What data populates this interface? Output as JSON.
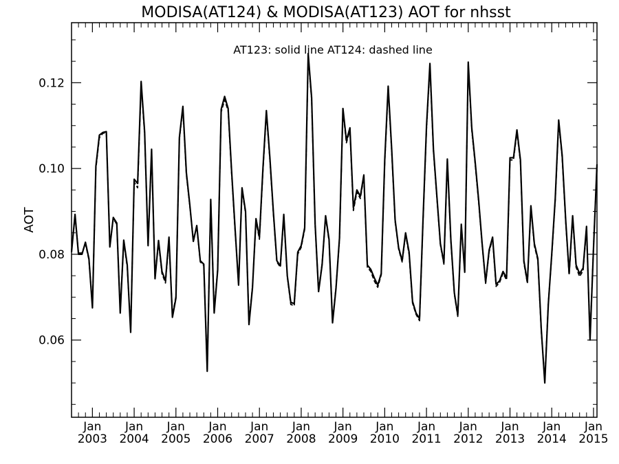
{
  "chart_data": {
    "type": "line",
    "title": "MODISA(AT124) & MODISA(AT123)  AOT for nhsst",
    "ylabel": "AOT",
    "xlabel": "",
    "annotation": "AT123: solid line   AT124: dashed line",
    "ylim": [
      0.042,
      0.134
    ],
    "xlim": [
      "2002-07",
      "2015-02"
    ],
    "y_ticks": [
      {
        "value": 0.06,
        "label": "0.06"
      },
      {
        "value": 0.08,
        "label": "0.08"
      },
      {
        "value": 0.1,
        "label": "0.10"
      },
      {
        "value": 0.12,
        "label": "0.12"
      }
    ],
    "x_ticks": [
      {
        "date": "2003-01",
        "month": "Jan",
        "year": "2003"
      },
      {
        "date": "2004-01",
        "month": "Jan",
        "year": "2004"
      },
      {
        "date": "2005-01",
        "month": "Jan",
        "year": "2005"
      },
      {
        "date": "2006-01",
        "month": "Jan",
        "year": "2006"
      },
      {
        "date": "2007-01",
        "month": "Jan",
        "year": "2007"
      },
      {
        "date": "2008-01",
        "month": "Jan",
        "year": "2008"
      },
      {
        "date": "2009-01",
        "month": "Jan",
        "year": "2009"
      },
      {
        "date": "2010-01",
        "month": "Jan",
        "year": "2010"
      },
      {
        "date": "2011-01",
        "month": "Jan",
        "year": "2011"
      },
      {
        "date": "2012-01",
        "month": "Jan",
        "year": "2012"
      },
      {
        "date": "2013-01",
        "month": "Jan",
        "year": "2013"
      },
      {
        "date": "2014-01",
        "month": "Jan",
        "year": "2014"
      },
      {
        "date": "2015-01",
        "month": "Jan",
        "year": "2015"
      }
    ],
    "x": [
      "2002-07",
      "2002-08",
      "2002-09",
      "2002-10",
      "2002-11",
      "2002-12",
      "2003-01",
      "2003-02",
      "2003-03",
      "2003-04",
      "2003-05",
      "2003-06",
      "2003-07",
      "2003-08",
      "2003-09",
      "2003-10",
      "2003-11",
      "2003-12",
      "2004-01",
      "2004-02",
      "2004-03",
      "2004-04",
      "2004-05",
      "2004-06",
      "2004-07",
      "2004-08",
      "2004-09",
      "2004-10",
      "2004-11",
      "2004-12",
      "2005-01",
      "2005-02",
      "2005-03",
      "2005-04",
      "2005-05",
      "2005-06",
      "2005-07",
      "2005-08",
      "2005-09",
      "2005-10",
      "2005-11",
      "2005-12",
      "2006-01",
      "2006-02",
      "2006-03",
      "2006-04",
      "2006-05",
      "2006-06",
      "2006-07",
      "2006-08",
      "2006-09",
      "2006-10",
      "2006-11",
      "2006-12",
      "2007-01",
      "2007-02",
      "2007-03",
      "2007-04",
      "2007-05",
      "2007-06",
      "2007-07",
      "2007-08",
      "2007-09",
      "2007-10",
      "2007-11",
      "2007-12",
      "2008-01",
      "2008-02",
      "2008-03",
      "2008-04",
      "2008-05",
      "2008-06",
      "2008-07",
      "2008-08",
      "2008-09",
      "2008-10",
      "2008-11",
      "2008-12",
      "2009-01",
      "2009-02",
      "2009-03",
      "2009-04",
      "2009-05",
      "2009-06",
      "2009-07",
      "2009-08",
      "2009-09",
      "2009-10",
      "2009-11",
      "2009-12",
      "2010-01",
      "2010-02",
      "2010-03",
      "2010-04",
      "2010-05",
      "2010-06",
      "2010-07",
      "2010-08",
      "2010-09",
      "2010-10",
      "2010-11",
      "2010-12",
      "2011-01",
      "2011-02",
      "2011-03",
      "2011-04",
      "2011-05",
      "2011-06",
      "2011-07",
      "2011-08",
      "2011-09",
      "2011-10",
      "2011-11",
      "2011-12",
      "2012-01",
      "2012-02",
      "2012-03",
      "2012-04",
      "2012-05",
      "2012-06",
      "2012-07",
      "2012-08",
      "2012-09",
      "2012-10",
      "2012-11",
      "2012-12",
      "2013-01",
      "2013-02",
      "2013-03",
      "2013-04",
      "2013-05",
      "2013-06",
      "2013-07",
      "2013-08",
      "2013-09",
      "2013-10",
      "2013-11",
      "2013-12",
      "2014-01",
      "2014-02",
      "2014-03",
      "2014-04",
      "2014-05",
      "2014-06",
      "2014-07",
      "2014-08",
      "2014-09",
      "2014-10",
      "2014-11",
      "2014-12",
      "2015-01",
      "2015-02"
    ],
    "series": [
      {
        "name": "AT123",
        "style": "solid",
        "values": [
          0.0805,
          0.0893,
          0.08,
          0.08,
          0.0828,
          0.079,
          0.0675,
          0.1005,
          0.1078,
          0.1084,
          0.1086,
          0.0817,
          0.0886,
          0.0873,
          0.0663,
          0.0833,
          0.0775,
          0.0618,
          0.0975,
          0.0965,
          0.1203,
          0.1085,
          0.082,
          0.1045,
          0.0743,
          0.0832,
          0.076,
          0.0738,
          0.084,
          0.0653,
          0.0698,
          0.1072,
          0.1145,
          0.099,
          0.0915,
          0.083,
          0.0867,
          0.0785,
          0.0777,
          0.0527,
          0.0928,
          0.0663,
          0.0763,
          0.1138,
          0.1168,
          0.114,
          0.0995,
          0.086,
          0.0728,
          0.0955,
          0.09,
          0.0636,
          0.0722,
          0.0883,
          0.084,
          0.1,
          0.1135,
          0.1025,
          0.0898,
          0.0785,
          0.0773,
          0.0893,
          0.075,
          0.0688,
          0.0685,
          0.0805,
          0.082,
          0.0862,
          0.1268,
          0.1165,
          0.087,
          0.0713,
          0.0775,
          0.089,
          0.0835,
          0.064,
          0.072,
          0.0838,
          0.114,
          0.1065,
          0.1095,
          0.0908,
          0.095,
          0.0935,
          0.0985,
          0.0775,
          0.0765,
          0.0745,
          0.0728,
          0.0755,
          0.102,
          0.1192,
          0.1045,
          0.088,
          0.0815,
          0.0785,
          0.085,
          0.0805,
          0.069,
          0.0663,
          0.065,
          0.0878,
          0.1098,
          0.1245,
          0.1045,
          0.0933,
          0.0825,
          0.078,
          0.1022,
          0.0835,
          0.071,
          0.0658,
          0.087,
          0.0758,
          0.1248,
          0.1095,
          0.1015,
          0.0925,
          0.0825,
          0.0735,
          0.081,
          0.084,
          0.073,
          0.0738,
          0.076,
          0.0745,
          0.1025,
          0.1025,
          0.109,
          0.102,
          0.0785,
          0.0735,
          0.0913,
          0.0825,
          0.079,
          0.0625,
          0.05,
          0.0683,
          0.08,
          0.093,
          0.1113,
          0.103,
          0.088,
          0.0755,
          0.089,
          0.0775,
          0.0755,
          0.0768,
          0.0865,
          0.06,
          0.0813,
          0.101
        ]
      },
      {
        "name": "AT124",
        "style": "dashed",
        "values": [
          0.0808,
          0.0891,
          0.0803,
          0.0803,
          0.0825,
          0.0787,
          0.068,
          0.1,
          0.1072,
          0.1082,
          0.1084,
          0.082,
          0.0883,
          0.087,
          0.0668,
          0.083,
          0.077,
          0.0623,
          0.0968,
          0.0955,
          0.1195,
          0.108,
          0.0825,
          0.104,
          0.0748,
          0.0828,
          0.0755,
          0.0733,
          0.0836,
          0.0658,
          0.0702,
          0.1068,
          0.114,
          0.0985,
          0.0912,
          0.0833,
          0.0864,
          0.0782,
          0.0774,
          0.0532,
          0.0925,
          0.0668,
          0.0766,
          0.1132,
          0.116,
          0.1135,
          0.099,
          0.0855,
          0.0732,
          0.095,
          0.0896,
          0.0641,
          0.0725,
          0.0878,
          0.0835,
          0.0995,
          0.113,
          0.102,
          0.0894,
          0.0782,
          0.077,
          0.0888,
          0.0748,
          0.0683,
          0.068,
          0.08,
          0.0816,
          0.0858,
          0.1262,
          0.116,
          0.0866,
          0.0716,
          0.0778,
          0.0886,
          0.0831,
          0.0645,
          0.0723,
          0.0834,
          0.1134,
          0.106,
          0.109,
          0.0902,
          0.0945,
          0.093,
          0.098,
          0.077,
          0.076,
          0.0738,
          0.0723,
          0.0752,
          0.1015,
          0.1186,
          0.104,
          0.0876,
          0.0812,
          0.0782,
          0.0846,
          0.08,
          0.0686,
          0.066,
          0.0645,
          0.0874,
          0.1092,
          0.1238,
          0.104,
          0.093,
          0.0822,
          0.0777,
          0.1018,
          0.0831,
          0.0707,
          0.0655,
          0.0866,
          0.0762,
          0.1242,
          0.109,
          0.101,
          0.092,
          0.0822,
          0.0732,
          0.0806,
          0.0836,
          0.0725,
          0.0734,
          0.0756,
          0.074,
          0.102,
          0.102,
          0.1085,
          0.1015,
          0.078,
          0.0732,
          0.0908,
          0.082,
          0.0786,
          0.062,
          0.0505,
          0.0686,
          0.0796,
          0.0926,
          0.1108,
          0.1025,
          0.0876,
          0.0752,
          0.0886,
          0.077,
          0.0748,
          0.0762,
          0.086,
          0.0605,
          0.0816,
          0.1005
        ]
      }
    ],
    "grid": false,
    "legend": "none"
  }
}
